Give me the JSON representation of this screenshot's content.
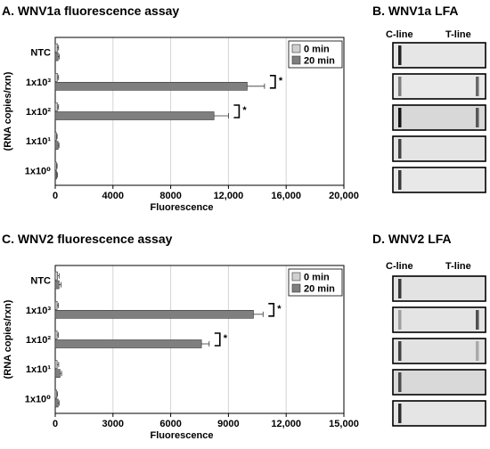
{
  "panels": {
    "a_title": "A. WNV1a fluorescence assay",
    "b_title": "B. WNV1a LFA",
    "c_title": "C. WNV2 fluorescence assay",
    "d_title": "D. WNV2 LFA"
  },
  "lfa": {
    "c_line": "C-line",
    "t_line": "T-line",
    "wnv1a_strips": [
      {
        "c": 0.85,
        "t": 0.0,
        "bg": "#e6e6e6"
      },
      {
        "c": 0.45,
        "t": 0.55,
        "bg": "#e9e9e9"
      },
      {
        "c": 0.9,
        "t": 0.6,
        "bg": "#d8d8d8"
      },
      {
        "c": 0.7,
        "t": 0.0,
        "bg": "#e4e4e4"
      },
      {
        "c": 0.75,
        "t": 0.0,
        "bg": "#e8e8e8"
      }
    ],
    "wnv2_strips": [
      {
        "c": 0.75,
        "t": 0.0,
        "bg": "#e3e3e3"
      },
      {
        "c": 0.3,
        "t": 0.65,
        "bg": "#e4e4e4"
      },
      {
        "c": 0.7,
        "t": 0.25,
        "bg": "#e2e2e2"
      },
      {
        "c": 0.65,
        "t": 0.0,
        "bg": "#d9d9d9"
      },
      {
        "c": 0.8,
        "t": 0.0,
        "bg": "#e5e5e5"
      }
    ]
  },
  "chart_data": [
    {
      "type": "bar",
      "orientation": "horizontal",
      "categories": [
        "NTC",
        "1x10³",
        "1x10²",
        "1x10¹",
        "1x10⁰"
      ],
      "series": [
        {
          "name": "0 min",
          "color": "#d0d0d0",
          "values": [
            150,
            150,
            150,
            80,
            80
          ],
          "errors": [
            80,
            80,
            80,
            50,
            50
          ]
        },
        {
          "name": "20 min",
          "color": "#7f7f7f",
          "values": [
            200,
            13300,
            11000,
            200,
            100
          ],
          "errors": [
            80,
            1200,
            1000,
            60,
            50
          ]
        }
      ],
      "significance": [
        "",
        "*",
        "*",
        "",
        ""
      ],
      "xlabel": "Fluorescence",
      "ylabel": "(RNA copies/rxn)",
      "xlim": [
        0,
        20000
      ],
      "xticks": [
        0,
        4000,
        8000,
        12000,
        16000,
        20000
      ],
      "xtick_labels": [
        "0",
        "4000",
        "8000",
        "12,000",
        "16,000",
        "20,000"
      ],
      "grid": true,
      "legend": "top-right"
    },
    {
      "type": "bar",
      "orientation": "horizontal",
      "categories": [
        "NTC",
        "1x10³",
        "1x10²",
        "1x10¹",
        "1x10⁰"
      ],
      "series": [
        {
          "name": "0 min",
          "color": "#d0d0d0",
          "values": [
            120,
            100,
            100,
            100,
            80
          ],
          "errors": [
            80,
            70,
            60,
            80,
            40
          ]
        },
        {
          "name": "20 min",
          "color": "#7f7f7f",
          "values": [
            200,
            10300,
            7600,
            250,
            150
          ],
          "errors": [
            100,
            500,
            400,
            80,
            50
          ]
        }
      ],
      "significance": [
        "",
        "*",
        "*",
        "",
        ""
      ],
      "xlabel": "Fluorescence",
      "ylabel": "(RNA copies/rxn)",
      "xlim": [
        0,
        15000
      ],
      "xticks": [
        0,
        3000,
        6000,
        9000,
        12000,
        15000
      ],
      "xtick_labels": [
        "0",
        "3000",
        "6000",
        "9000",
        "12,000",
        "15,000"
      ],
      "grid": true,
      "legend": "top-right"
    }
  ]
}
